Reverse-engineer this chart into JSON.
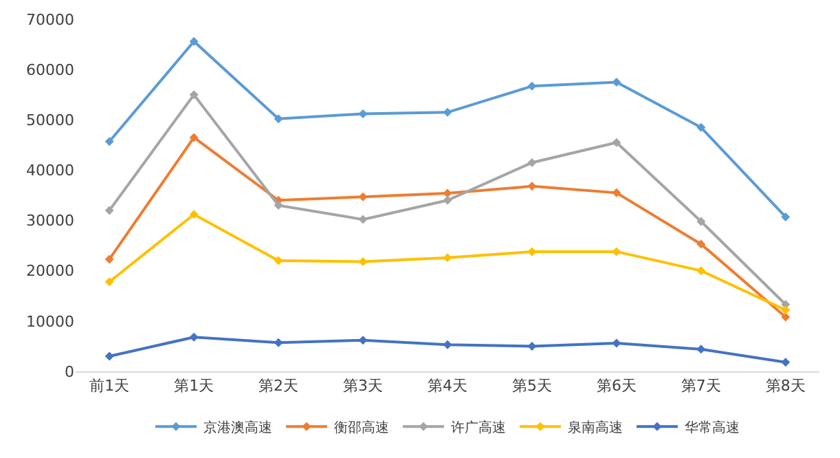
{
  "chart_data": {
    "type": "line",
    "categories": [
      "前1天",
      "第1天",
      "第2天",
      "第3天",
      "第4天",
      "第5天",
      "第6天",
      "第7天",
      "第8天"
    ],
    "series": [
      {
        "name": "京港澳高速",
        "color": "#5b9bd5",
        "values": [
          45700,
          65600,
          50200,
          51200,
          51500,
          56700,
          57500,
          48500,
          30700
        ]
      },
      {
        "name": "衡邵高速",
        "color": "#ed7d31",
        "values": [
          22300,
          46500,
          34000,
          34700,
          35400,
          36800,
          35500,
          25300,
          10800
        ]
      },
      {
        "name": "许广高速",
        "color": "#a5a5a5",
        "values": [
          32000,
          55000,
          33000,
          30200,
          34000,
          41500,
          45500,
          29800,
          13300
        ]
      },
      {
        "name": "泉南高速",
        "color": "#ffc000",
        "values": [
          17800,
          31200,
          22000,
          21800,
          22600,
          23800,
          23800,
          20000,
          12200
        ]
      },
      {
        "name": "华常高速",
        "color": "#4472c4",
        "values": [
          3000,
          6800,
          5700,
          6200,
          5300,
          5000,
          5600,
          4400,
          1800
        ]
      }
    ],
    "ylim": [
      0,
      70000
    ],
    "yticks": [
      0,
      10000,
      20000,
      30000,
      40000,
      50000,
      60000,
      70000
    ],
    "legend": "bottom",
    "marker": "diamond",
    "line_style": "solid"
  }
}
